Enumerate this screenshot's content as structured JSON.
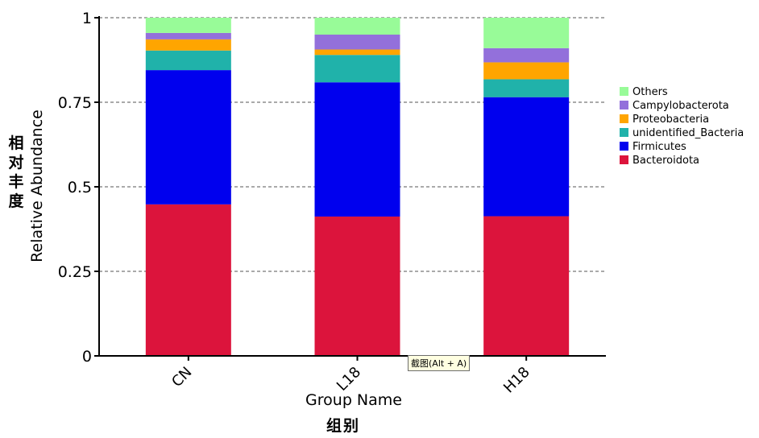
{
  "chart_data": {
    "type": "bar",
    "stacked": true,
    "categories": [
      "CN",
      "L18",
      "H18"
    ],
    "series": [
      {
        "name": "Bacteroidota",
        "color": "#dc143c",
        "values": [
          0.448,
          0.412,
          0.413
        ]
      },
      {
        "name": "Firmicutes",
        "color": "#0000ee",
        "values": [
          0.397,
          0.397,
          0.352
        ]
      },
      {
        "name": "unidentified_Bacteria",
        "color": "#20b2aa",
        "values": [
          0.058,
          0.081,
          0.053
        ]
      },
      {
        "name": "Proteobacteria",
        "color": "#ffa500",
        "values": [
          0.033,
          0.016,
          0.05
        ]
      },
      {
        "name": "Campylobacterota",
        "color": "#9370db",
        "values": [
          0.019,
          0.044,
          0.042
        ]
      },
      {
        "name": "Others",
        "color": "#98fb98",
        "values": [
          0.045,
          0.05,
          0.09
        ]
      }
    ],
    "xlabel": "Group Name",
    "ylabel": "Relative Abundance",
    "ylim": [
      0,
      1
    ],
    "yticks": [
      0,
      0.25,
      0.5,
      0.75,
      1
    ],
    "ytick_labels": [
      "0",
      "0.25",
      "0.5",
      "0.75",
      "1"
    ],
    "grid": "horizontal dashed",
    "legend_position": "right"
  },
  "labels": {
    "y_cn": "相对丰度",
    "x_cn": "组别"
  },
  "tooltip": {
    "text": "截图(Alt + A)"
  }
}
